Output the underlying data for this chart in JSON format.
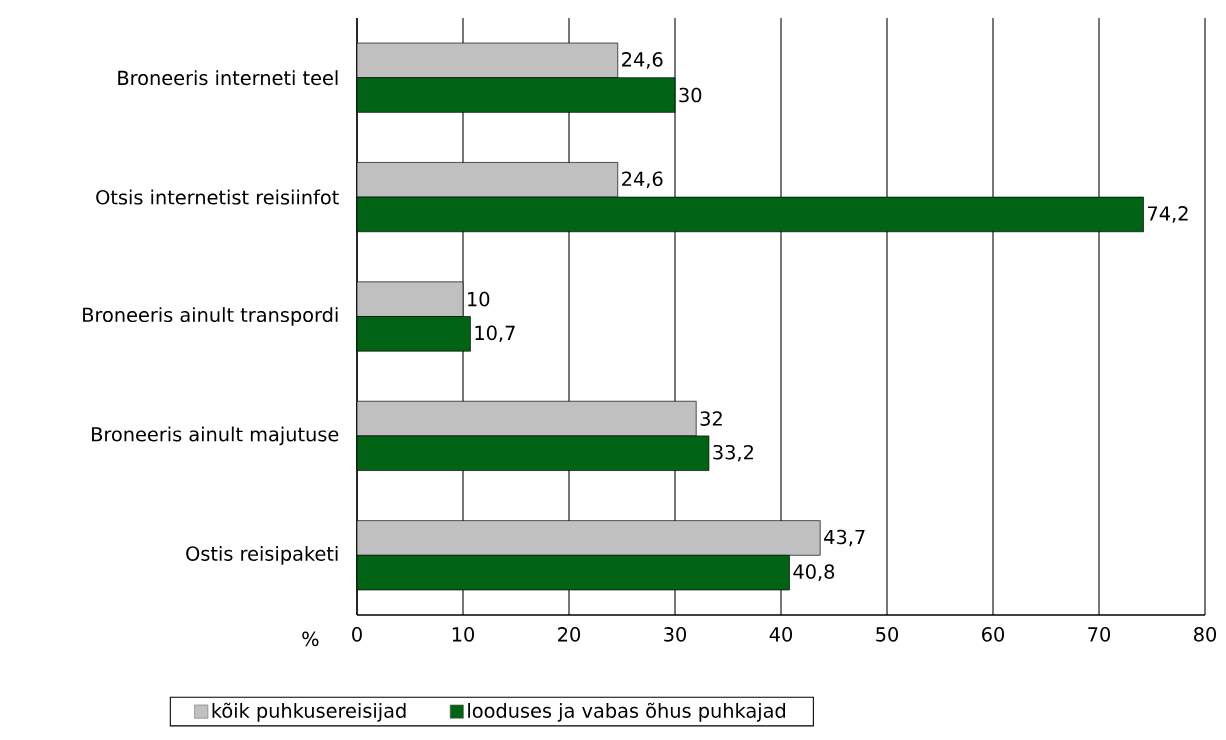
{
  "chart_data": {
    "type": "bar",
    "orientation": "horizontal",
    "categories": [
      "Broneeris interneti teel",
      "Otsis internetist reisiinfot",
      "Broneeris ainult transpordi",
      "Broneeris ainult majutuse",
      "Ostis reisipaketi"
    ],
    "series": [
      {
        "name": "kõik puhkusereisijad",
        "color": "#c0c0c0",
        "values": [
          24.6,
          24.6,
          10,
          32,
          43.7
        ],
        "value_labels": [
          "24,6",
          "24,6",
          "10",
          "32",
          "43,7"
        ]
      },
      {
        "name": "looduses ja vabas õhus puhkajad",
        "color": "#006414",
        "values": [
          30,
          74.2,
          10.7,
          33.2,
          40.8
        ],
        "value_labels": [
          "30",
          "74,2",
          "10,7",
          "33,2",
          "40,8"
        ]
      }
    ],
    "xlabel": "%",
    "xlim": [
      0,
      80
    ],
    "xticks": [
      0,
      10,
      20,
      30,
      40,
      50,
      60,
      70,
      80
    ],
    "grid": "x",
    "legend": "bottom"
  }
}
